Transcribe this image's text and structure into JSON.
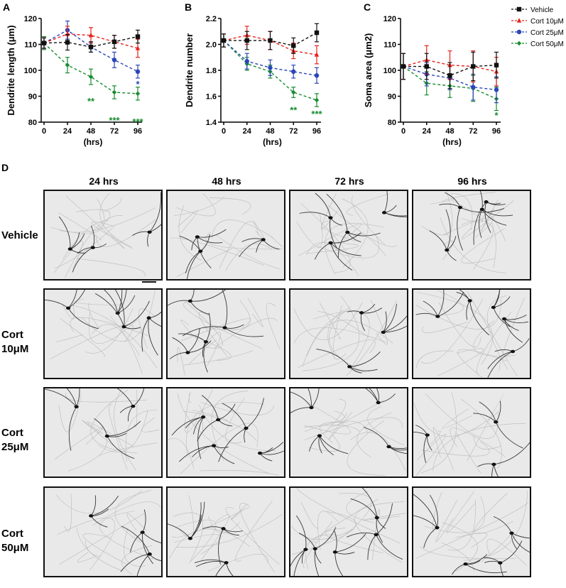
{
  "panels": {
    "A": {
      "letter": "A"
    },
    "B": {
      "letter": "B"
    },
    "C": {
      "letter": "C"
    },
    "D": {
      "letter": "D"
    }
  },
  "legend": [
    {
      "name": "Vehicle",
      "color": "#111111",
      "marker": "square"
    },
    {
      "name": "Cort 10μM",
      "color": "#e8221c",
      "marker": "triangle"
    },
    {
      "name": "Cort 25μM",
      "color": "#2a46b7",
      "marker": "circle"
    },
    {
      "name": "Cort 50μM",
      "color": "#178c2e",
      "marker": "diamond"
    }
  ],
  "chart_data": [
    {
      "type": "line",
      "panel": "A",
      "xlabel": "(hrs)",
      "ylabel": "Dendrite length (μm)",
      "x": [
        0,
        24,
        48,
        72,
        96
      ],
      "xticks": [
        "0",
        "24",
        "48",
        "72",
        "96"
      ],
      "ylim": [
        80,
        120
      ],
      "yticks": [
        "80",
        "90",
        "100",
        "110",
        "120"
      ],
      "series": [
        {
          "name": "Vehicle",
          "values": [
            110.5,
            110.8,
            109,
            111,
            113
          ],
          "err": [
            2,
            3,
            2,
            2.5,
            2.5
          ]
        },
        {
          "name": "Cort 10μM",
          "values": [
            110.5,
            114,
            113.5,
            111,
            108.5
          ],
          "err": [
            2,
            3,
            3,
            2.5,
            3.5
          ]
        },
        {
          "name": "Cort 25μM",
          "values": [
            110.5,
            115.5,
            109,
            104,
            99.5
          ],
          "err": [
            2,
            3.5,
            2,
            3,
            2.5
          ]
        },
        {
          "name": "Cort 50μM",
          "values": [
            110.5,
            102,
            97.5,
            91.5,
            91
          ],
          "err": [
            2.5,
            3,
            3,
            2.5,
            2.5
          ]
        }
      ],
      "annotations": [
        {
          "text": "**",
          "x": 48,
          "y": 88,
          "color": "#178c2e"
        },
        {
          "text": "***",
          "x": 72,
          "y": 80.5,
          "color": "#178c2e"
        },
        {
          "text": "***",
          "x": 96,
          "y": 80,
          "color": "#178c2e"
        },
        {
          "text": "*",
          "x": 96,
          "y": 94.5,
          "color": "#2a46b7"
        }
      ]
    },
    {
      "type": "line",
      "panel": "B",
      "xlabel": "(hrs)",
      "ylabel": "Dendrite number",
      "x": [
        0,
        24,
        48,
        72,
        96
      ],
      "xticks": [
        "0",
        "24",
        "48",
        "72",
        "96"
      ],
      "ylim": [
        1.4,
        2.2
      ],
      "yticks": [
        "1.4",
        "1.6",
        "1.8",
        "2.0",
        "2.2"
      ],
      "series": [
        {
          "name": "Vehicle",
          "values": [
            2.03,
            2.03,
            2.03,
            1.99,
            2.09
          ],
          "err": [
            0.05,
            0.07,
            0.07,
            0.06,
            0.07
          ]
        },
        {
          "name": "Cort 10μM",
          "values": [
            2.03,
            2.07,
            2.03,
            1.95,
            1.92
          ],
          "err": [
            0.05,
            0.07,
            0.07,
            0.06,
            0.07
          ]
        },
        {
          "name": "Cort 25μM",
          "values": [
            2.03,
            1.87,
            1.82,
            1.79,
            1.76
          ],
          "err": [
            0.05,
            0.06,
            0.06,
            0.05,
            0.06
          ]
        },
        {
          "name": "Cort 50μM",
          "values": [
            2.03,
            1.85,
            1.79,
            1.63,
            1.57
          ],
          "err": [
            0.05,
            0.05,
            0.05,
            0.04,
            0.05
          ]
        }
      ],
      "annotations": [
        {
          "text": "**",
          "x": 72,
          "y": 1.49,
          "color": "#178c2e"
        },
        {
          "text": "***",
          "x": 96,
          "y": 1.46,
          "color": "#178c2e"
        }
      ]
    },
    {
      "type": "line",
      "panel": "C",
      "xlabel": "(hrs)",
      "ylabel": "Soma area (μm2)",
      "x": [
        0,
        24,
        48,
        72,
        96
      ],
      "xticks": [
        "0",
        "24",
        "48",
        "72",
        "96"
      ],
      "ylim": [
        80,
        120
      ],
      "yticks": [
        "80",
        "90",
        "100",
        "110",
        "120"
      ],
      "series": [
        {
          "name": "Vehicle",
          "values": [
            101.5,
            101.5,
            98,
            101.5,
            102
          ],
          "err": [
            5,
            5,
            5,
            5.5,
            5
          ]
        },
        {
          "name": "Cort 10μM",
          "values": [
            101.5,
            104,
            102,
            101.5,
            99.5
          ],
          "err": [
            5,
            5.5,
            5.5,
            6,
            5.5
          ]
        },
        {
          "name": "Cort 25μM",
          "values": [
            101.5,
            98.5,
            97,
            93.5,
            92.5
          ],
          "err": [
            5,
            4.5,
            4.5,
            5,
            5
          ]
        },
        {
          "name": "Cort 50μM",
          "values": [
            101.5,
            95,
            94,
            93,
            89
          ],
          "err": [
            5,
            4.5,
            4.5,
            5,
            4.5
          ]
        }
      ],
      "annotations": [
        {
          "text": "*",
          "x": 96,
          "y": 82.5,
          "color": "#178c2e"
        }
      ]
    }
  ],
  "grid": {
    "columns": [
      "24 hrs",
      "48 hrs",
      "72 hrs",
      "96 hrs"
    ],
    "rows": [
      {
        "line1": "Vehicle",
        "line2": ""
      },
      {
        "line1": "Cort",
        "line2": "10μM"
      },
      {
        "line1": "Cort",
        "line2": "25μM"
      },
      {
        "line1": "Cort",
        "line2": "50μM"
      }
    ]
  }
}
